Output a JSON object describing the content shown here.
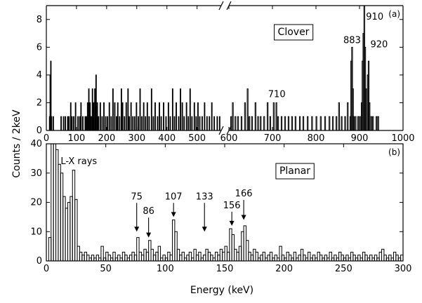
{
  "figure": {
    "shared_ylabel": "Counts / 2keV",
    "xlabel": "Energy (keV)"
  },
  "chart_data": [
    {
      "id": "a",
      "type": "histogram",
      "panel_label": "(a)",
      "detector_label": "Clover",
      "xlabel": "",
      "ylabel": "Counts / 2keV",
      "xlim": [
        0,
        1000
      ],
      "ylim": [
        0,
        9
      ],
      "x_axis_break": [
        580,
        600
      ],
      "bin_width_kev": 2,
      "xticks": [
        0,
        100,
        200,
        300,
        400,
        500,
        600,
        700,
        800,
        900,
        1000
      ],
      "yticks": [
        0,
        2,
        4,
        6,
        8
      ],
      "line_color": "#000000",
      "bins": [
        [
          10,
          1
        ],
        [
          12,
          4
        ],
        [
          14,
          5
        ],
        [
          16,
          1
        ],
        [
          22,
          1
        ],
        [
          48,
          1
        ],
        [
          56,
          1
        ],
        [
          62,
          1
        ],
        [
          70,
          1
        ],
        [
          74,
          1
        ],
        [
          80,
          2
        ],
        [
          84,
          1
        ],
        [
          90,
          1
        ],
        [
          96,
          2
        ],
        [
          104,
          1
        ],
        [
          110,
          1
        ],
        [
          114,
          2
        ],
        [
          120,
          1
        ],
        [
          128,
          1
        ],
        [
          132,
          1
        ],
        [
          136,
          2
        ],
        [
          140,
          3
        ],
        [
          144,
          2
        ],
        [
          148,
          1
        ],
        [
          152,
          3
        ],
        [
          156,
          2
        ],
        [
          160,
          3
        ],
        [
          164,
          4
        ],
        [
          168,
          2
        ],
        [
          172,
          1
        ],
        [
          178,
          2
        ],
        [
          184,
          1
        ],
        [
          190,
          2
        ],
        [
          196,
          1
        ],
        [
          202,
          1
        ],
        [
          208,
          2
        ],
        [
          214,
          1
        ],
        [
          220,
          3
        ],
        [
          226,
          2
        ],
        [
          232,
          1
        ],
        [
          236,
          2
        ],
        [
          242,
          1
        ],
        [
          248,
          3
        ],
        [
          252,
          2
        ],
        [
          258,
          1
        ],
        [
          264,
          2
        ],
        [
          270,
          3
        ],
        [
          274,
          1
        ],
        [
          280,
          2
        ],
        [
          286,
          1
        ],
        [
          292,
          1
        ],
        [
          298,
          2
        ],
        [
          304,
          1
        ],
        [
          310,
          3
        ],
        [
          316,
          1
        ],
        [
          322,
          2
        ],
        [
          328,
          1
        ],
        [
          334,
          2
        ],
        [
          340,
          1
        ],
        [
          348,
          3
        ],
        [
          354,
          1
        ],
        [
          360,
          2
        ],
        [
          368,
          1
        ],
        [
          374,
          2
        ],
        [
          380,
          1
        ],
        [
          388,
          2
        ],
        [
          396,
          1
        ],
        [
          404,
          2
        ],
        [
          410,
          1
        ],
        [
          418,
          3
        ],
        [
          424,
          1
        ],
        [
          430,
          2
        ],
        [
          438,
          1
        ],
        [
          444,
          3
        ],
        [
          450,
          2
        ],
        [
          456,
          1
        ],
        [
          464,
          2
        ],
        [
          470,
          1
        ],
        [
          476,
          3
        ],
        [
          482,
          1
        ],
        [
          490,
          2
        ],
        [
          496,
          1
        ],
        [
          502,
          2
        ],
        [
          508,
          1
        ],
        [
          516,
          1
        ],
        [
          524,
          2
        ],
        [
          532,
          1
        ],
        [
          540,
          1
        ],
        [
          548,
          2
        ],
        [
          556,
          1
        ],
        [
          566,
          1
        ],
        [
          574,
          1
        ],
        [
          604,
          1
        ],
        [
          608,
          2
        ],
        [
          614,
          1
        ],
        [
          620,
          1
        ],
        [
          628,
          1
        ],
        [
          636,
          2
        ],
        [
          642,
          3
        ],
        [
          646,
          1
        ],
        [
          652,
          1
        ],
        [
          660,
          2
        ],
        [
          666,
          1
        ],
        [
          672,
          1
        ],
        [
          680,
          1
        ],
        [
          688,
          2
        ],
        [
          694,
          1
        ],
        [
          702,
          2
        ],
        [
          708,
          2
        ],
        [
          712,
          1
        ],
        [
          720,
          1
        ],
        [
          728,
          1
        ],
        [
          736,
          1
        ],
        [
          744,
          1
        ],
        [
          752,
          1
        ],
        [
          762,
          1
        ],
        [
          770,
          1
        ],
        [
          780,
          1
        ],
        [
          790,
          1
        ],
        [
          800,
          1
        ],
        [
          810,
          1
        ],
        [
          820,
          1
        ],
        [
          830,
          1
        ],
        [
          838,
          1
        ],
        [
          846,
          1
        ],
        [
          852,
          2
        ],
        [
          858,
          1
        ],
        [
          866,
          1
        ],
        [
          872,
          2
        ],
        [
          878,
          1
        ],
        [
          880,
          5
        ],
        [
          882,
          6
        ],
        [
          884,
          3
        ],
        [
          886,
          1
        ],
        [
          890,
          1
        ],
        [
          896,
          1
        ],
        [
          900,
          1
        ],
        [
          904,
          2
        ],
        [
          906,
          5
        ],
        [
          908,
          7
        ],
        [
          910,
          9
        ],
        [
          912,
          6
        ],
        [
          914,
          3
        ],
        [
          918,
          4
        ],
        [
          920,
          5
        ],
        [
          922,
          2
        ],
        [
          926,
          1
        ],
        [
          930,
          1
        ],
        [
          938,
          1
        ],
        [
          942,
          1
        ]
      ],
      "annotations": [
        {
          "text": "710",
          "x": 710,
          "y": 2.4
        },
        {
          "text": "883",
          "x": 883,
          "y": 6.3
        },
        {
          "text": "910",
          "x": 935,
          "y": 8.0
        },
        {
          "text": "920",
          "x": 945,
          "y": 6.0
        }
      ]
    },
    {
      "id": "b",
      "type": "histogram",
      "panel_label": "(b)",
      "detector_label": "Planar",
      "xlabel": "Energy (keV)",
      "ylabel": "Counts / 2keV",
      "xlim": [
        0,
        300
      ],
      "ylim": [
        0,
        40
      ],
      "bin_width_kev": 2,
      "xticks": [
        0,
        50,
        100,
        150,
        200,
        250,
        300
      ],
      "yticks": [
        0,
        10,
        20,
        30,
        40
      ],
      "line_color": "#000000",
      "bins": [
        [
          0,
          0
        ],
        [
          2,
          8
        ],
        [
          4,
          41
        ],
        [
          6,
          41
        ],
        [
          8,
          38
        ],
        [
          10,
          33
        ],
        [
          12,
          30
        ],
        [
          14,
          22
        ],
        [
          16,
          18
        ],
        [
          18,
          20
        ],
        [
          20,
          22
        ],
        [
          22,
          31
        ],
        [
          24,
          21
        ],
        [
          26,
          5
        ],
        [
          28,
          3
        ],
        [
          30,
          2
        ],
        [
          32,
          3
        ],
        [
          34,
          2
        ],
        [
          36,
          1
        ],
        [
          38,
          2
        ],
        [
          40,
          1
        ],
        [
          42,
          2
        ],
        [
          44,
          1
        ],
        [
          46,
          5
        ],
        [
          48,
          1
        ],
        [
          50,
          3
        ],
        [
          52,
          2
        ],
        [
          54,
          1
        ],
        [
          56,
          3
        ],
        [
          58,
          1
        ],
        [
          60,
          2
        ],
        [
          62,
          1
        ],
        [
          64,
          3
        ],
        [
          66,
          2
        ],
        [
          68,
          1
        ],
        [
          70,
          2
        ],
        [
          72,
          3
        ],
        [
          74,
          2
        ],
        [
          76,
          8
        ],
        [
          78,
          3
        ],
        [
          80,
          2
        ],
        [
          82,
          4
        ],
        [
          84,
          3
        ],
        [
          86,
          7
        ],
        [
          88,
          4
        ],
        [
          90,
          2
        ],
        [
          92,
          3
        ],
        [
          94,
          5
        ],
        [
          96,
          1
        ],
        [
          98,
          2
        ],
        [
          100,
          1
        ],
        [
          102,
          3
        ],
        [
          104,
          2
        ],
        [
          106,
          14
        ],
        [
          108,
          10
        ],
        [
          110,
          4
        ],
        [
          112,
          2
        ],
        [
          114,
          3
        ],
        [
          116,
          1
        ],
        [
          118,
          2
        ],
        [
          120,
          3
        ],
        [
          122,
          1
        ],
        [
          124,
          4
        ],
        [
          126,
          2
        ],
        [
          128,
          3
        ],
        [
          130,
          1
        ],
        [
          132,
          2
        ],
        [
          134,
          4
        ],
        [
          136,
          3
        ],
        [
          138,
          2
        ],
        [
          140,
          1
        ],
        [
          142,
          3
        ],
        [
          144,
          2
        ],
        [
          146,
          4
        ],
        [
          148,
          3
        ],
        [
          150,
          5
        ],
        [
          152,
          3
        ],
        [
          154,
          11
        ],
        [
          156,
          9
        ],
        [
          158,
          4
        ],
        [
          160,
          3
        ],
        [
          162,
          5
        ],
        [
          164,
          10
        ],
        [
          166,
          12
        ],
        [
          168,
          7
        ],
        [
          170,
          3
        ],
        [
          172,
          2
        ],
        [
          174,
          4
        ],
        [
          176,
          3
        ],
        [
          178,
          1
        ],
        [
          180,
          2
        ],
        [
          182,
          3
        ],
        [
          184,
          1
        ],
        [
          186,
          2
        ],
        [
          188,
          3
        ],
        [
          190,
          1
        ],
        [
          192,
          2
        ],
        [
          194,
          1
        ],
        [
          196,
          5
        ],
        [
          198,
          2
        ],
        [
          200,
          1
        ],
        [
          202,
          3
        ],
        [
          204,
          2
        ],
        [
          206,
          1
        ],
        [
          208,
          3
        ],
        [
          210,
          1
        ],
        [
          212,
          2
        ],
        [
          214,
          4
        ],
        [
          216,
          2
        ],
        [
          218,
          1
        ],
        [
          220,
          3
        ],
        [
          222,
          1
        ],
        [
          224,
          2
        ],
        [
          226,
          1
        ],
        [
          228,
          3
        ],
        [
          230,
          2
        ],
        [
          232,
          1
        ],
        [
          234,
          2
        ],
        [
          236,
          1
        ],
        [
          238,
          3
        ],
        [
          240,
          1
        ],
        [
          242,
          2
        ],
        [
          244,
          1
        ],
        [
          246,
          3
        ],
        [
          248,
          2
        ],
        [
          250,
          1
        ],
        [
          252,
          2
        ],
        [
          254,
          1
        ],
        [
          256,
          3
        ],
        [
          258,
          2
        ],
        [
          260,
          1
        ],
        [
          262,
          2
        ],
        [
          264,
          1
        ],
        [
          266,
          3
        ],
        [
          268,
          2
        ],
        [
          270,
          1
        ],
        [
          272,
          2
        ],
        [
          274,
          1
        ],
        [
          276,
          2
        ],
        [
          278,
          1
        ],
        [
          280,
          3
        ],
        [
          282,
          4
        ],
        [
          284,
          2
        ],
        [
          286,
          1
        ],
        [
          288,
          2
        ],
        [
          290,
          1
        ],
        [
          292,
          3
        ],
        [
          294,
          2
        ],
        [
          296,
          1
        ],
        [
          298,
          2
        ]
      ],
      "annotations": [
        {
          "text": "L-X rays",
          "x": 12,
          "y": 33
        },
        {
          "text": "75",
          "x": 76,
          "y": 21,
          "arrow_to": 10
        },
        {
          "text": "86",
          "x": 86,
          "y": 16,
          "arrow_to": 8
        },
        {
          "text": "107",
          "x": 107,
          "y": 21,
          "arrow_to": 15
        },
        {
          "text": "133",
          "x": 133,
          "y": 21,
          "arrow_to": 10
        },
        {
          "text": "156",
          "x": 156,
          "y": 18,
          "arrow_to": 12
        },
        {
          "text": "166",
          "x": 166,
          "y": 22,
          "arrow_to": 14
        }
      ]
    }
  ]
}
